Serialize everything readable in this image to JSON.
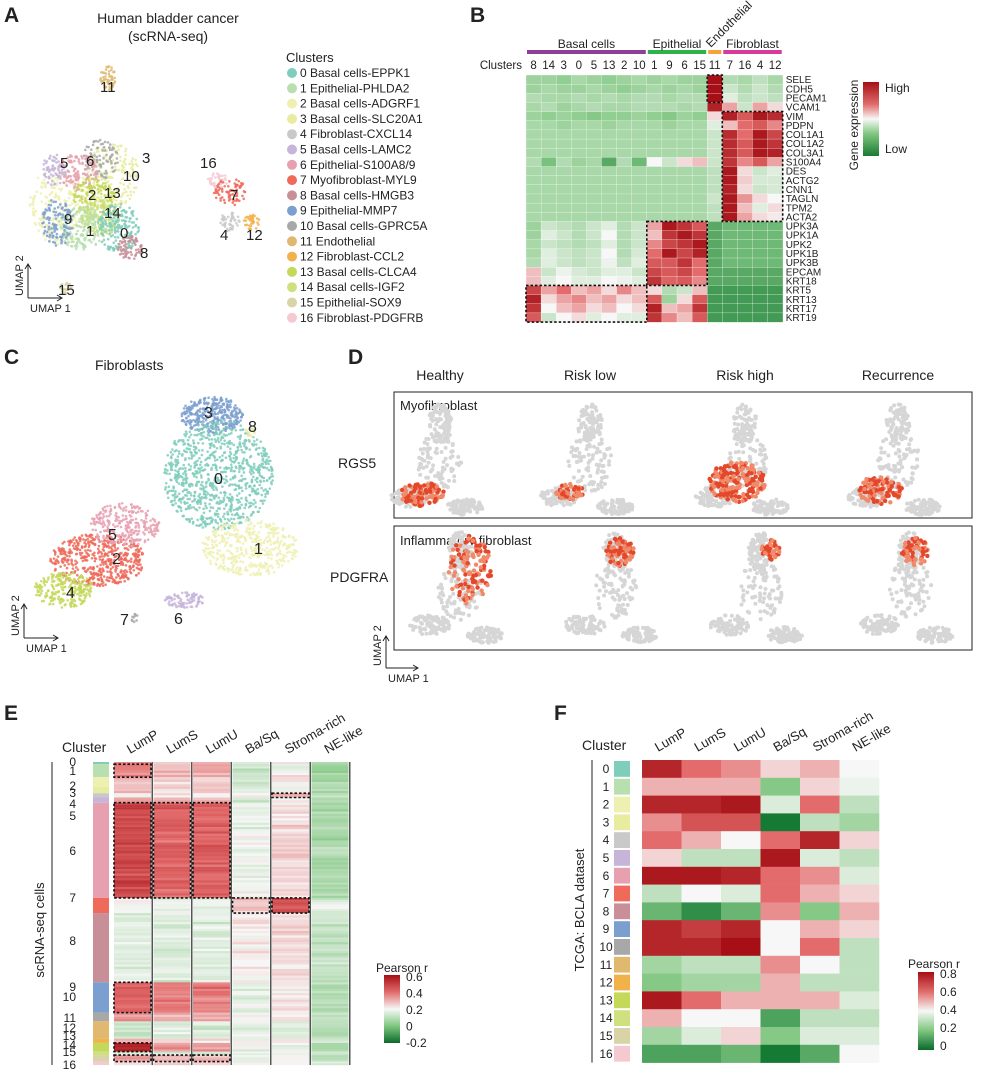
{
  "panels": {
    "A": "A",
    "B": "B",
    "C": "C",
    "D": "D",
    "E": "E",
    "F": "F"
  },
  "panelA": {
    "title1": "Human bladder cancer",
    "title2": "(scRNA-seq)",
    "legend_title": "Clusters",
    "umap_y": "UMAP 2",
    "umap_x": "UMAP 1",
    "clusters": [
      {
        "id": "0",
        "label": "0 Basal cells-EPPK1",
        "color": "#7fcdbb"
      },
      {
        "id": "1",
        "label": "1 Epithelial-PHLDA2",
        "color": "#b8dfb0"
      },
      {
        "id": "2",
        "label": "2 Basal cells-ADGRF1",
        "color": "#eef0b2"
      },
      {
        "id": "3",
        "label": "3 Basal cells-SLC20A1",
        "color": "#e7ec9e"
      },
      {
        "id": "4",
        "label": "4 Fibroblast-CXCL14",
        "color": "#c9c9c9"
      },
      {
        "id": "5",
        "label": "5 Basal cells-LAMC2",
        "color": "#c7b5d9"
      },
      {
        "id": "6",
        "label": "6 Epithelial-S100A8/9",
        "color": "#e7a0b0"
      },
      {
        "id": "7",
        "label": "7 Myofibroblast-MYL9",
        "color": "#ef6a5a"
      },
      {
        "id": "8",
        "label": "8 Basal cells-HMGB3",
        "color": "#c98f98"
      },
      {
        "id": "9",
        "label": "9 Epithelial-MMP7",
        "color": "#7b9fcf"
      },
      {
        "id": "10",
        "label": "10 Basal cells-GPRC5A",
        "color": "#a8a8a8"
      },
      {
        "id": "11",
        "label": "11 Endothelial",
        "color": "#e0b870"
      },
      {
        "id": "12",
        "label": "12 Fibroblast-CCL2",
        "color": "#f2b24b"
      },
      {
        "id": "13",
        "label": "13 Basal cells-CLCA4",
        "color": "#c5d85a"
      },
      {
        "id": "14",
        "label": "14 Basal cells-IGF2",
        "color": "#cfe07f"
      },
      {
        "id": "15",
        "label": "15 Epithelial-SOX9",
        "color": "#d9d4a8"
      },
      {
        "id": "16",
        "label": "16 Fibroblast-PDGFRB",
        "color": "#f5c9d2"
      }
    ]
  },
  "panelB": {
    "groups": [
      {
        "name": "Basal cells",
        "color": "#8e3f97"
      },
      {
        "name": "Epithelial",
        "color": "#2db34a"
      },
      {
        "name": "Endothelial",
        "color": "#f2a33a"
      },
      {
        "name": "Fibroblast",
        "color": "#d63a9b"
      }
    ],
    "clusters_label": "Clusters",
    "legend_title": "Gene expression",
    "legend_high": "High",
    "legend_low": "Low"
  },
  "panelC": {
    "title": "Fibroblasts",
    "umap_y": "UMAP 2",
    "umap_x": "UMAP 1"
  },
  "panelD": {
    "conditions": [
      "Healthy",
      "Risk low",
      "Risk high",
      "Recurrence"
    ],
    "rows": [
      {
        "box_label": "Myofibroblast",
        "gene": "RGS5"
      },
      {
        "box_label": "Inflammatory fibroblast",
        "gene": "PDGFRA"
      }
    ],
    "umap_y": "UMAP 2",
    "umap_x": "UMAP 1"
  },
  "panelE": {
    "cluster_label": "Cluster",
    "axis_label": "scRNA-seq cells",
    "legend_title": "Pearson r"
  },
  "panelF": {
    "cluster_label": "Cluster",
    "axis_label": "TCGA: BCLA dataset",
    "legend_title": "Pearson r"
  },
  "chart_data": [
    {
      "type": "heatmap",
      "panel": "B",
      "col_groups": [
        {
          "name": "Basal cells",
          "clusters": [
            "8",
            "14",
            "3",
            "0",
            "5",
            "13",
            "2",
            "10"
          ]
        },
        {
          "name": "Epithelial",
          "clusters": [
            "1",
            "9",
            "6",
            "15"
          ]
        },
        {
          "name": "Endothelial",
          "clusters": [
            "11"
          ]
        },
        {
          "name": "Fibroblast",
          "clusters": [
            "7",
            "16",
            "4",
            "12"
          ]
        }
      ],
      "columns": [
        "8",
        "14",
        "3",
        "0",
        "5",
        "13",
        "2",
        "10",
        "1",
        "9",
        "6",
        "15",
        "11",
        "7",
        "16",
        "4",
        "12"
      ],
      "rows": [
        "SELE",
        "CDH5",
        "PECAM1",
        "VCAM1",
        "VIM",
        "PDPN",
        "COL1A1",
        "COL1A2",
        "COL3A1",
        "S100A4",
        "DES",
        "ACTG2",
        "CNN1",
        "TAGLN",
        "TPM2",
        "ACTA2",
        "UPK3A",
        "UPK1A",
        "UPK2",
        "UPK1B",
        "UPK3B",
        "EPCAM",
        "KRT18",
        "KRT5",
        "KRT13",
        "KRT17",
        "KRT19"
      ],
      "values": [
        [
          -0.4,
          -0.4,
          -0.45,
          -0.35,
          -0.4,
          -0.45,
          -0.4,
          -0.35,
          -0.4,
          -0.35,
          -0.4,
          -0.4,
          1,
          -0.3,
          -0.35,
          -0.25,
          -0.35
        ],
        [
          -0.4,
          -0.35,
          -0.4,
          -0.4,
          -0.35,
          -0.4,
          -0.45,
          -0.4,
          -0.35,
          -0.4,
          -0.35,
          -0.4,
          1,
          -0.2,
          -0.3,
          -0.2,
          -0.3
        ],
        [
          -0.3,
          -0.35,
          -0.35,
          -0.3,
          -0.35,
          -0.3,
          -0.35,
          -0.3,
          -0.3,
          -0.35,
          -0.3,
          -0.3,
          1,
          -0.1,
          -0.25,
          -0.2,
          -0.25
        ],
        [
          -0.35,
          -0.3,
          -0.4,
          -0.35,
          -0.3,
          -0.35,
          -0.35,
          -0.3,
          -0.3,
          -0.3,
          -0.35,
          -0.3,
          0.9,
          0.3,
          -0.2,
          0.3,
          0.1
        ],
        [
          -0.4,
          -0.45,
          -0.4,
          -0.45,
          -0.5,
          -0.45,
          -0.45,
          -0.4,
          -0.45,
          -0.5,
          -0.4,
          -0.45,
          0.1,
          0.9,
          0.6,
          0.95,
          0.85
        ],
        [
          -0.35,
          -0.35,
          -0.4,
          -0.35,
          -0.35,
          -0.4,
          -0.35,
          -0.35,
          -0.35,
          -0.4,
          -0.35,
          -0.35,
          -0.1,
          0.2,
          0.5,
          0.6,
          0.4
        ],
        [
          -0.35,
          -0.35,
          -0.35,
          -0.35,
          -0.35,
          -0.35,
          -0.35,
          -0.35,
          -0.35,
          -0.35,
          -0.35,
          -0.35,
          -0.2,
          0.85,
          0.5,
          0.95,
          0.7
        ],
        [
          -0.35,
          -0.35,
          -0.35,
          -0.35,
          -0.35,
          -0.35,
          -0.35,
          -0.35,
          -0.35,
          -0.35,
          -0.35,
          -0.35,
          -0.2,
          0.85,
          0.6,
          0.95,
          0.8
        ],
        [
          -0.35,
          -0.35,
          -0.35,
          -0.35,
          -0.35,
          -0.35,
          -0.35,
          -0.35,
          -0.35,
          -0.35,
          -0.35,
          -0.35,
          -0.2,
          0.85,
          0.6,
          0.95,
          0.9
        ],
        [
          -0.3,
          -0.55,
          -0.3,
          -0.4,
          -0.35,
          -0.7,
          -0.3,
          -0.6,
          0,
          -0.2,
          0.1,
          0.2,
          -0.2,
          0.8,
          0.4,
          0.6,
          0.3
        ],
        [
          -0.35,
          -0.35,
          -0.35,
          -0.35,
          -0.35,
          -0.35,
          -0.35,
          -0.35,
          -0.35,
          -0.35,
          -0.35,
          -0.35,
          -0.25,
          0.95,
          0.1,
          -0.2,
          -0.1
        ],
        [
          -0.35,
          -0.35,
          -0.35,
          -0.35,
          -0.35,
          -0.35,
          -0.35,
          -0.35,
          -0.35,
          -0.35,
          -0.35,
          -0.35,
          -0.25,
          0.95,
          0.15,
          -0.15,
          -0.15
        ],
        [
          -0.35,
          -0.35,
          -0.35,
          -0.35,
          -0.35,
          -0.35,
          -0.35,
          -0.35,
          -0.35,
          -0.35,
          -0.35,
          -0.35,
          -0.25,
          0.9,
          0.1,
          -0.2,
          -0.15
        ],
        [
          -0.35,
          -0.35,
          -0.35,
          -0.35,
          -0.35,
          -0.35,
          -0.35,
          -0.35,
          -0.35,
          -0.35,
          -0.35,
          -0.35,
          -0.2,
          0.95,
          0.35,
          0.1,
          0.0
        ],
        [
          -0.35,
          -0.35,
          -0.35,
          -0.35,
          -0.35,
          -0.35,
          -0.35,
          -0.35,
          -0.35,
          -0.35,
          -0.35,
          -0.35,
          -0.25,
          0.95,
          0.2,
          -0.1,
          0.1
        ],
        [
          -0.35,
          -0.35,
          -0.35,
          -0.35,
          -0.35,
          -0.35,
          -0.35,
          -0.35,
          -0.35,
          -0.35,
          -0.35,
          -0.35,
          -0.25,
          0.95,
          0.3,
          0.1,
          0.05
        ],
        [
          -0.4,
          -0.2,
          -0.25,
          -0.3,
          -0.2,
          -0.1,
          -0.3,
          -0.2,
          0.3,
          0.95,
          0.8,
          0.6,
          -0.7,
          -0.6,
          -0.6,
          -0.6,
          -0.6
        ],
        [
          -0.4,
          -0.1,
          -0.2,
          -0.3,
          -0.2,
          0.0,
          -0.3,
          -0.2,
          0.2,
          0.8,
          0.95,
          0.8,
          -0.7,
          -0.6,
          -0.6,
          -0.6,
          -0.6
        ],
        [
          -0.35,
          -0.2,
          -0.25,
          -0.3,
          -0.25,
          -0.1,
          -0.3,
          -0.2,
          0.4,
          0.7,
          0.8,
          0.95,
          -0.7,
          -0.6,
          -0.6,
          -0.6,
          -0.6
        ],
        [
          -0.35,
          -0.1,
          -0.2,
          -0.25,
          -0.2,
          0.0,
          -0.3,
          -0.15,
          0.5,
          0.95,
          0.7,
          0.9,
          -0.7,
          -0.6,
          -0.6,
          -0.6,
          -0.6
        ],
        [
          -0.3,
          -0.1,
          -0.2,
          -0.25,
          -0.2,
          -0.05,
          -0.25,
          -0.1,
          0.6,
          0.6,
          0.8,
          0.5,
          -0.7,
          -0.6,
          -0.6,
          -0.6,
          -0.6
        ],
        [
          0.2,
          -0.2,
          -0.05,
          -0.15,
          -0.2,
          -0.1,
          -0.1,
          -0.2,
          0.7,
          0.6,
          0.7,
          0.5,
          -0.7,
          -0.7,
          -0.7,
          -0.7,
          -0.7
        ],
        [
          0.2,
          -0.1,
          0.0,
          -0.1,
          -0.1,
          0.0,
          -0.05,
          -0.1,
          0.8,
          0.55,
          0.6,
          0.4,
          -0.7,
          -0.7,
          -0.7,
          -0.7,
          -0.7
        ],
        [
          0.7,
          0.3,
          0.5,
          0.2,
          0.3,
          0.1,
          0.4,
          0.2,
          0.1,
          -0.3,
          -0.2,
          0.2,
          -0.8,
          -0.8,
          -0.8,
          -0.8,
          -0.8
        ],
        [
          0.9,
          0.1,
          0.3,
          0.4,
          0.2,
          0.3,
          0.1,
          0.2,
          0.6,
          -0.4,
          0.1,
          0.6,
          -0.8,
          -0.8,
          -0.8,
          -0.8,
          -0.8
        ],
        [
          0.8,
          0.0,
          0.2,
          0.3,
          0.1,
          0.2,
          0.0,
          0.1,
          0.9,
          0.2,
          0.3,
          0.8,
          -0.8,
          -0.8,
          -0.8,
          -0.8,
          -0.8
        ],
        [
          0.6,
          -0.2,
          0.0,
          0.1,
          -0.1,
          0.0,
          -0.1,
          -0.1,
          0.8,
          0.4,
          0.2,
          0.6,
          -0.8,
          -0.8,
          -0.8,
          -0.8,
          -0.8
        ]
      ]
    },
    {
      "type": "heatmap",
      "panel": "E",
      "columns": [
        "LumP",
        "LumS",
        "LumU",
        "Ba/Sq",
        "Stroma-rich",
        "NE-like"
      ],
      "clusters": [
        "0",
        "1",
        "2",
        "3",
        "4",
        "5",
        "6",
        "7",
        "8",
        "9",
        "10",
        "11",
        "12",
        "13",
        "14",
        "15",
        "16"
      ],
      "cluster_colors": [
        "#7fcdbb",
        "#b8dfb0",
        "#eef0b2",
        "#e7ec9e",
        "#c9c9c9",
        "#c7b5d9",
        "#e7a0b0",
        "#ef6a5a",
        "#c98f98",
        "#7b9fcf",
        "#a8a8a8",
        "#e0b870",
        "#f2b24b",
        "#c5d85a",
        "#cfe07f",
        "#d9d4a8",
        "#f5c9d2"
      ],
      "cluster_mean_r": [
        [
          0.15,
          0.1,
          0.1,
          -0.05,
          0.02,
          -0.15
        ],
        [
          0.2,
          0.12,
          0.12,
          -0.08,
          0.0,
          -0.18
        ],
        [
          0.08,
          0.05,
          0.06,
          -0.06,
          0.0,
          -0.16
        ],
        [
          0.1,
          0.06,
          0.08,
          -0.05,
          0.0,
          -0.15
        ],
        [
          0.02,
          0.0,
          0.0,
          0.0,
          0.1,
          -0.1
        ],
        [
          0.15,
          0.1,
          0.08,
          -0.05,
          0.02,
          -0.15
        ],
        [
          0.3,
          0.25,
          0.25,
          -0.02,
          0.05,
          -0.15
        ],
        [
          0.0,
          -0.02,
          -0.02,
          0.08,
          0.3,
          -0.05
        ],
        [
          -0.05,
          -0.05,
          -0.05,
          0.02,
          0.05,
          -0.1
        ],
        [
          0.25,
          0.2,
          0.2,
          -0.04,
          0.02,
          -0.12
        ],
        [
          0.15,
          0.1,
          0.1,
          -0.02,
          0.02,
          -0.12
        ],
        [
          -0.08,
          -0.06,
          -0.06,
          -0.02,
          -0.04,
          -0.12
        ],
        [
          0.1,
          0.05,
          0.05,
          -0.02,
          0.0,
          -0.1
        ],
        [
          0.4,
          0.15,
          0.15,
          -0.05,
          -0.02,
          -0.15
        ],
        [
          -0.05,
          -0.04,
          -0.04,
          -0.02,
          -0.02,
          -0.1
        ],
        [
          0.15,
          0.1,
          0.12,
          -0.03,
          0.0,
          -0.12
        ],
        [
          0.05,
          0.02,
          0.02,
          0.0,
          0.02,
          -0.08
        ]
      ],
      "cluster_cell_fraction": [
        0.005,
        0.03,
        0.022,
        0.015,
        0.01,
        0.012,
        0.22,
        0.035,
        0.16,
        0.07,
        0.02,
        0.04,
        0.01,
        0.02,
        0.008,
        0.015,
        0.008
      ],
      "highlighted": [
        {
          "cluster": "1",
          "column": "LumP"
        },
        {
          "cluster": "4",
          "column": "Stroma-rich"
        },
        {
          "cluster": "6",
          "column": "LumP"
        },
        {
          "cluster": "6",
          "column": "LumS"
        },
        {
          "cluster": "6",
          "column": "LumU"
        },
        {
          "cluster": "7",
          "column": "Ba/Sq"
        },
        {
          "cluster": "7",
          "column": "Stroma-rich"
        },
        {
          "cluster": "9",
          "column": "LumP"
        },
        {
          "cluster": "13",
          "column": "LumP"
        },
        {
          "cluster": "15",
          "column": "LumP"
        },
        {
          "cluster": "15",
          "column": "LumS"
        },
        {
          "cluster": "15",
          "column": "LumU"
        }
      ],
      "colorbar": {
        "min": -0.2,
        "max": 0.6,
        "ticks": [
          0.6,
          0.4,
          0.2,
          0,
          -0.2
        ]
      }
    },
    {
      "type": "heatmap",
      "panel": "F",
      "columns": [
        "LumP",
        "LumS",
        "LumU",
        "Ba/Sq",
        "Stroma-rich",
        "NE-like"
      ],
      "rows": [
        "0",
        "1",
        "2",
        "3",
        "4",
        "5",
        "6",
        "7",
        "8",
        "9",
        "10",
        "11",
        "12",
        "13",
        "14",
        "15",
        "16"
      ],
      "values": [
        [
          0.75,
          0.6,
          0.55,
          0.45,
          0.5,
          0.4
        ],
        [
          0.5,
          0.5,
          0.5,
          0.2,
          0.45,
          0.38
        ],
        [
          0.75,
          0.75,
          0.78,
          0.35,
          0.6,
          0.3
        ],
        [
          0.55,
          0.65,
          0.65,
          0.0,
          0.3,
          0.25
        ],
        [
          0.6,
          0.5,
          0.4,
          0.6,
          0.75,
          0.45
        ],
        [
          0.45,
          0.3,
          0.3,
          0.78,
          0.35,
          0.3
        ],
        [
          0.78,
          0.78,
          0.75,
          0.6,
          0.55,
          0.35
        ],
        [
          0.3,
          0.4,
          0.35,
          0.6,
          0.5,
          0.45
        ],
        [
          0.15,
          0.05,
          0.15,
          0.55,
          0.2,
          0.5
        ],
        [
          0.75,
          0.7,
          0.75,
          0.4,
          0.5,
          0.45
        ],
        [
          0.75,
          0.75,
          0.8,
          0.4,
          0.6,
          0.3
        ],
        [
          0.25,
          0.3,
          0.3,
          0.55,
          0.4,
          0.3
        ],
        [
          0.2,
          0.25,
          0.25,
          0.5,
          0.3,
          0.3
        ],
        [
          0.78,
          0.6,
          0.5,
          0.5,
          0.5,
          0.35
        ],
        [
          0.5,
          0.4,
          0.4,
          0.1,
          0.3,
          0.3
        ],
        [
          0.25,
          0.35,
          0.45,
          0.2,
          0.35,
          0.35
        ],
        [
          0.1,
          0.1,
          0.15,
          0.0,
          0.12,
          0.4
        ]
      ],
      "colorbar": {
        "min": 0,
        "max": 0.8,
        "ticks": [
          0.8,
          0.6,
          0.4,
          0.2,
          0
        ]
      }
    }
  ]
}
